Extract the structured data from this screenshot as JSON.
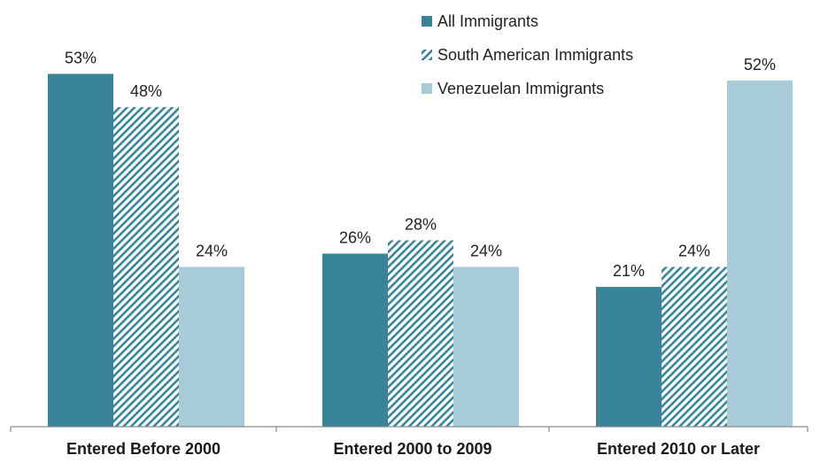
{
  "chart_data": {
    "type": "bar",
    "title": "",
    "xlabel": "",
    "ylabel": "",
    "ylim": [
      0,
      60
    ],
    "grid": false,
    "legend_position": "top-right",
    "categories": [
      "Entered Before 2000",
      "Entered 2000 to 2009",
      "Entered 2010 or Later"
    ],
    "series": [
      {
        "name": "All Immigrants",
        "values": [
          53,
          26,
          21
        ],
        "labels": [
          "53%",
          "26%",
          "21%"
        ],
        "color": "#3a8499",
        "pattern": "solid"
      },
      {
        "name": "South American Immigrants",
        "values": [
          48,
          28,
          24
        ],
        "labels": [
          "48%",
          "28%",
          "24%"
        ],
        "color": "#3a8499",
        "pattern": "diagonal-hatch"
      },
      {
        "name": "Venezuelan Immigrants",
        "values": [
          24,
          24,
          52
        ],
        "labels": [
          "24%",
          "24%",
          "52%"
        ],
        "color": "#a8cbd9",
        "pattern": "solid"
      }
    ]
  }
}
